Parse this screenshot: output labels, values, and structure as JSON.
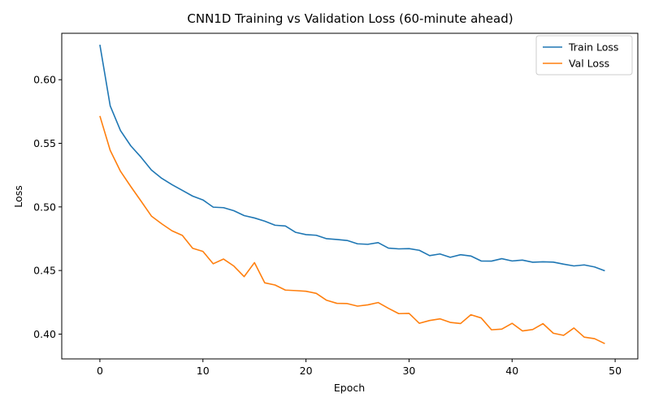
{
  "chart_data": {
    "type": "line",
    "title": "CNN1D Training vs Validation Loss (60-minute ahead)",
    "xlabel": "Epoch",
    "ylabel": "Loss",
    "xlim": [
      -3.7,
      52.2
    ],
    "ylim": [
      0.3805,
      0.6365
    ],
    "xticks": [
      0,
      10,
      20,
      30,
      40,
      50
    ],
    "yticks": [
      0.4,
      0.45,
      0.5,
      0.55,
      0.6
    ],
    "legend_position": "top-right",
    "grid": false,
    "x": [
      0,
      1,
      2,
      3,
      4,
      5,
      6,
      7,
      8,
      9,
      10,
      11,
      12,
      13,
      14,
      15,
      16,
      17,
      18,
      19,
      20,
      21,
      22,
      23,
      24,
      25,
      26,
      27,
      28,
      29,
      30,
      31,
      32,
      33,
      34,
      35,
      36,
      37,
      38,
      39,
      40,
      41,
      42,
      43,
      44,
      45,
      46,
      47,
      48,
      49
    ],
    "series": [
      {
        "name": "Train Loss",
        "color": "#1f77b4",
        "values": [
          0.6275,
          0.5795,
          0.56,
          0.548,
          0.539,
          0.529,
          0.5225,
          0.5175,
          0.513,
          0.5085,
          0.5055,
          0.4998,
          0.4994,
          0.497,
          0.4932,
          0.4913,
          0.4888,
          0.4856,
          0.485,
          0.48,
          0.4782,
          0.4777,
          0.475,
          0.4744,
          0.4736,
          0.471,
          0.4706,
          0.4719,
          0.4676,
          0.467,
          0.4672,
          0.4659,
          0.4617,
          0.463,
          0.4604,
          0.4624,
          0.4614,
          0.4575,
          0.4574,
          0.4593,
          0.4575,
          0.4582,
          0.4565,
          0.4568,
          0.4566,
          0.455,
          0.4536,
          0.4544,
          0.4528,
          0.4498
        ]
      },
      {
        "name": "Val Loss",
        "color": "#ff7f0e",
        "values": [
          0.5715,
          0.5445,
          0.528,
          0.516,
          0.5045,
          0.4928,
          0.4867,
          0.4812,
          0.4776,
          0.4675,
          0.465,
          0.4553,
          0.459,
          0.4535,
          0.4452,
          0.4562,
          0.4403,
          0.4386,
          0.4346,
          0.4342,
          0.4337,
          0.432,
          0.4266,
          0.4242,
          0.424,
          0.422,
          0.423,
          0.4248,
          0.4203,
          0.4161,
          0.4163,
          0.4085,
          0.4107,
          0.412,
          0.4092,
          0.4083,
          0.4152,
          0.4127,
          0.4034,
          0.4039,
          0.4085,
          0.4025,
          0.4036,
          0.4082,
          0.4007,
          0.399,
          0.4048,
          0.3976,
          0.3964,
          0.3925
        ]
      }
    ]
  }
}
